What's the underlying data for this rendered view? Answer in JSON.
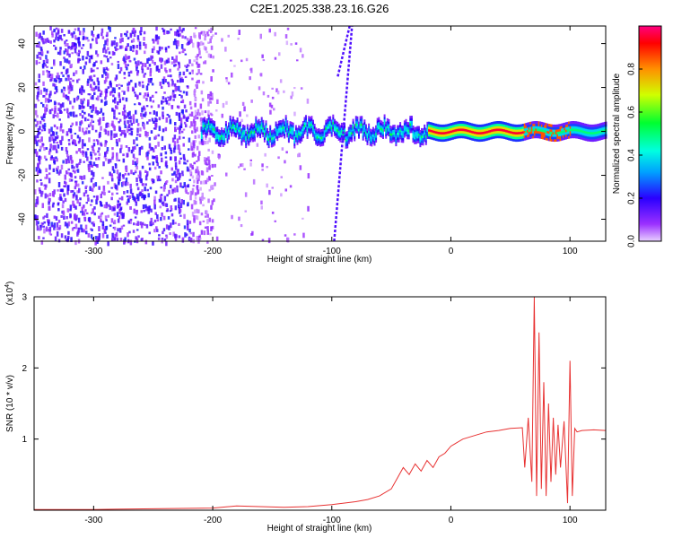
{
  "title": "C2E1.2025.338.23.16.G26",
  "colors": {
    "snr_line": "#e83232",
    "spectrogram_low": "#6a00ff",
    "background": "#ffffff"
  },
  "chart_data": [
    {
      "type": "heatmap",
      "xlabel": "Height of straight line (km)",
      "ylabel": "Frequency (Hz)",
      "xlim": [
        -350,
        130
      ],
      "ylim": [
        -50,
        48
      ],
      "xticks": [
        -300,
        -200,
        -100,
        0,
        100
      ],
      "yticks": [
        -40,
        -20,
        0,
        20,
        40
      ],
      "colorbar": {
        "label": "Normalized spectral amplitude",
        "range": [
          0,
          1
        ],
        "ticks": [
          "0.0",
          "0.2",
          "0.4",
          "0.6",
          "0.8"
        ],
        "colormap": "rainbow"
      },
      "grid": false,
      "features": {
        "noise_region_x": [
          -350,
          -120
        ],
        "strong_band_x": [
          -210,
          130
        ],
        "band_center_freq": 0,
        "peak_region_x": [
          -20,
          60
        ],
        "diagonal_streaks": [
          {
            "x": [
              -98,
              -83
            ],
            "freq": [
              -50,
              48
            ]
          },
          {
            "x": [
              -95,
              -85
            ],
            "freq": [
              25,
              48
            ]
          }
        ]
      }
    },
    {
      "type": "line",
      "xlabel": "Height of straight line (km)",
      "ylabel": "SNR (10 * v/v)",
      "y_scale_label": "(x10",
      "y_scale_exp": "4",
      "y_scale_close": ")",
      "xlim": [
        -350,
        130
      ],
      "ylim": [
        0,
        3
      ],
      "xticks": [
        -300,
        -200,
        -100,
        0,
        100
      ],
      "yticks": [
        1,
        2,
        3
      ],
      "grid": false,
      "series": [
        {
          "x": [
            -350,
            -300,
            -250,
            -200,
            -180,
            -160,
            -140,
            -120,
            -100,
            -80,
            -70,
            -60,
            -50,
            -45,
            -40,
            -35,
            -30,
            -25,
            -20,
            -15,
            -10,
            -5,
            0,
            10,
            20,
            30,
            40,
            50,
            60,
            62,
            65,
            68,
            70,
            72,
            74,
            76,
            78,
            80,
            82,
            84,
            86,
            88,
            90,
            92,
            95,
            98,
            100,
            102,
            104,
            106,
            110,
            120,
            130
          ],
          "values": [
            0.01,
            0.01,
            0.02,
            0.03,
            0.06,
            0.05,
            0.04,
            0.05,
            0.08,
            0.12,
            0.15,
            0.2,
            0.3,
            0.45,
            0.6,
            0.5,
            0.65,
            0.55,
            0.7,
            0.6,
            0.75,
            0.8,
            0.9,
            1.0,
            1.05,
            1.1,
            1.12,
            1.15,
            1.16,
            0.6,
            1.3,
            0.4,
            3.0,
            0.2,
            2.5,
            0.3,
            1.8,
            0.2,
            1.5,
            0.4,
            1.3,
            0.5,
            1.2,
            0.6,
            1.25,
            0.1,
            2.1,
            0.2,
            1.15,
            1.1,
            1.12,
            1.13,
            1.12
          ]
        }
      ]
    }
  ]
}
